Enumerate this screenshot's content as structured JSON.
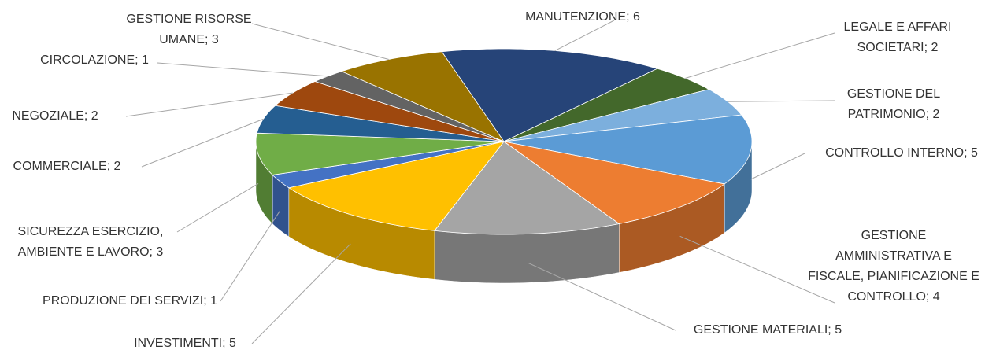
{
  "chart_data": {
    "type": "pie",
    "labels": [
      [
        "MANUTENZIONE; 6"
      ],
      [
        "LEGALE E AFFARI",
        "SOCIETARI; 2"
      ],
      [
        "GESTIONE DEL",
        "PATRIMONIO; 2"
      ],
      [
        "CONTROLLO INTERNO; 5"
      ],
      [
        "GESTIONE",
        "AMMINISTRATIVA E",
        "FISCALE, PIANIFICAZIONE E",
        "CONTROLLO; 4"
      ],
      [
        "GESTIONE MATERIALI; 5"
      ],
      [
        "INVESTIMENTI; 5"
      ],
      [
        "PRODUZIONE DEI SERVIZI; 1"
      ],
      [
        "SICUREZZA  ESERCIZIO,",
        "AMBIENTE E LAVORO; 3"
      ],
      [
        "COMMERCIALE; 2"
      ],
      [
        "NEGOZIALE; 2"
      ],
      [
        "CIRCOLAZIONE; 1"
      ],
      [
        "GESTIONE RISORSE",
        "UMANE; 3"
      ]
    ],
    "values": [
      6,
      2,
      2,
      5,
      4,
      5,
      5,
      1,
      3,
      2,
      2,
      1,
      3
    ],
    "colors": [
      "#264478",
      "#43682b",
      "#7cafdd",
      "#5b9bd5",
      "#ed7d31",
      "#a5a5a5",
      "#ffc000",
      "#4472c4",
      "#70ad47",
      "#255e91",
      "#9e480e",
      "#636363",
      "#997300"
    ]
  }
}
